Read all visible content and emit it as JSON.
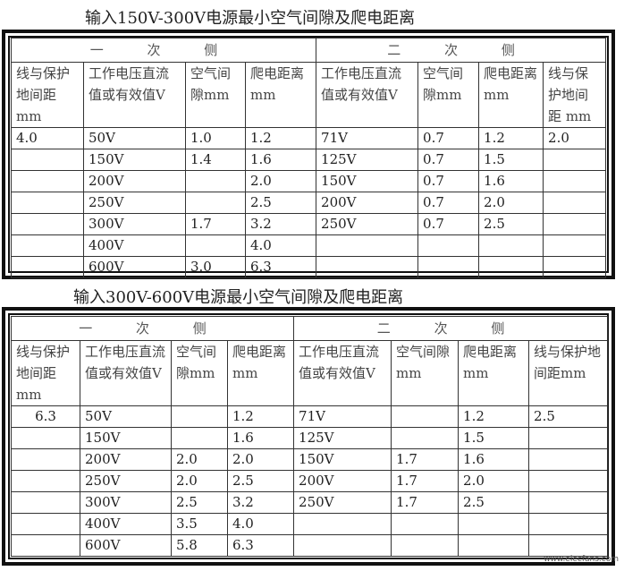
{
  "tables": [
    {
      "title": "输入150V-300V电源最小空气间隙及爬电距离",
      "primary_label": "一 次 侧",
      "secondary_label": "二 次 侧",
      "primary_headers": [
        "线与保护地间距 mm",
        "工作电压直流值或有效值V",
        "空气间隙mm",
        "爬电距离mm"
      ],
      "secondary_headers": [
        "工作电压直流值或有效值V",
        "空气间隙mm",
        "爬电距离mm",
        "线与保护地间距 mm"
      ],
      "rows": [
        [
          "4.0",
          "50V",
          "1.0",
          "1.2",
          "71V",
          "0.7",
          "1.2",
          "2.0"
        ],
        [
          "",
          "150V",
          "1.4",
          "1.6",
          "125V",
          "0.7",
          "1.5",
          ""
        ],
        [
          "",
          "200V",
          "",
          "2.0",
          "150V",
          "0.7",
          "1.6",
          ""
        ],
        [
          "",
          "250V",
          "",
          "2.5",
          "200V",
          "0.7",
          "2.0",
          ""
        ],
        [
          "",
          "300V",
          "1.7",
          "3.2",
          "250V",
          "0.7",
          "2.5",
          ""
        ],
        [
          "",
          "400V",
          "",
          "4.0",
          "",
          "",
          "",
          ""
        ],
        [
          "",
          "600V",
          "3.0",
          "6.3",
          "",
          "",
          "",
          ""
        ]
      ]
    },
    {
      "title": "输入300V-600V电源最小空气间隙及爬电距离",
      "primary_label": "一 次 侧",
      "secondary_label": "二 次 侧",
      "primary_headers": [
        "线与保护地间距 mm",
        "工作电压直流值或有效值V",
        "空气间隙mm",
        "爬电距离mm"
      ],
      "secondary_headers": [
        "工作电压直流值或有效值V",
        "空气间隙mm",
        "爬电距离mm",
        "线与保护地间距mm"
      ],
      "rows": [
        [
          "6.3",
          "50V",
          "",
          "1.2",
          "71V",
          "",
          "1.2",
          "2.5"
        ],
        [
          "",
          "150V",
          "",
          "1.6",
          "125V",
          "",
          "1.5",
          ""
        ],
        [
          "",
          "200V",
          "2.0",
          "2.0",
          "150V",
          "1.7",
          "1.6",
          ""
        ],
        [
          "",
          "250V",
          "2.0",
          "2.5",
          "200V",
          "1.7",
          "2.0",
          ""
        ],
        [
          "",
          "300V",
          "2.5",
          "3.2",
          "250V",
          "1.7",
          "2.5",
          ""
        ],
        [
          "",
          "400V",
          "3.5",
          "4.0",
          "",
          "",
          "",
          ""
        ],
        [
          "",
          "600V",
          "5.8",
          "6.3",
          "",
          "",
          "",
          ""
        ]
      ]
    }
  ],
  "watermark": "www.elecfans.com"
}
